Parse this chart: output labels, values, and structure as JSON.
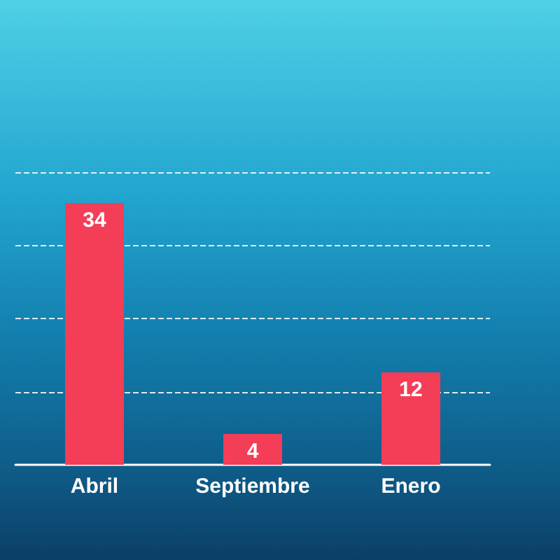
{
  "chart_data": {
    "type": "bar",
    "categories": [
      "Abril",
      "Septiembre",
      "Enero"
    ],
    "values": [
      34,
      4,
      12
    ],
    "color": "#f43d57",
    "data_labels": true,
    "grid": "y",
    "ylim": [
      0,
      38
    ],
    "yticks": [
      {
        "value": 9.5,
        "label": null
      },
      {
        "value": 19,
        "label": null
      },
      {
        "value": 28.5,
        "label": null
      },
      {
        "value": 38,
        "label": null
      }
    ]
  }
}
